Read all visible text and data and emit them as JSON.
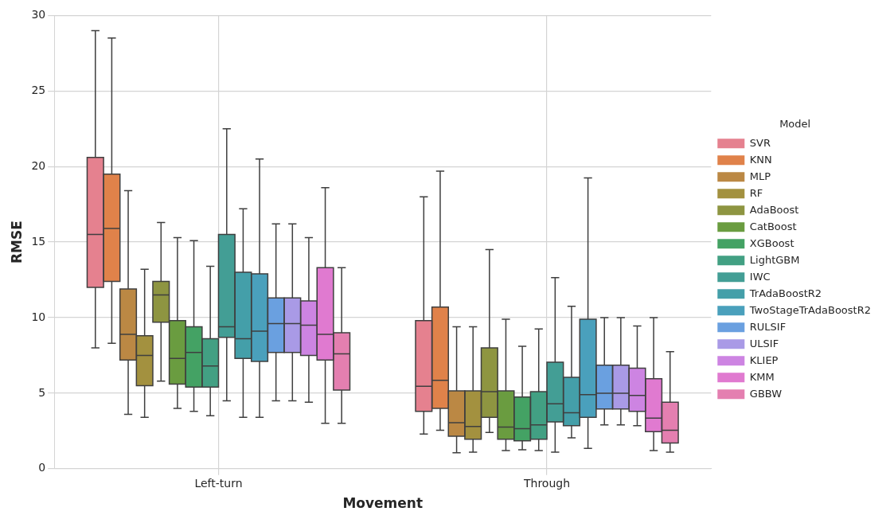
{
  "chart_data": {
    "type": "box",
    "xlabel": "Movement",
    "ylabel": "RMSE",
    "legend_title": "Model",
    "legend": "right",
    "categories": [
      "Left-turn",
      "Through"
    ],
    "ylim": [
      0,
      30
    ],
    "yticks": [
      0,
      5,
      10,
      15,
      20,
      25,
      30
    ],
    "grid": true,
    "series": [
      {
        "name": "SVR",
        "color": "#e5818f",
        "boxes": [
          {
            "low": 8.0,
            "q1": 12.0,
            "median": 15.5,
            "q3": 20.6,
            "high": 29.0
          },
          {
            "low": 2.3,
            "q1": 3.8,
            "median": 5.45,
            "q3": 9.8,
            "high": 18.0
          }
        ]
      },
      {
        "name": "KNN",
        "color": "#e0824a",
        "boxes": [
          {
            "low": 8.3,
            "q1": 12.4,
            "median": 15.9,
            "q3": 19.5,
            "high": 28.5
          },
          {
            "low": 2.55,
            "q1": 4.0,
            "median": 5.85,
            "q3": 10.7,
            "high": 19.7
          }
        ]
      },
      {
        "name": "MLP",
        "color": "#bb8844",
        "boxes": [
          {
            "low": 3.6,
            "q1": 7.2,
            "median": 8.9,
            "q3": 11.9,
            "high": 18.4
          },
          {
            "low": 1.05,
            "q1": 2.15,
            "median": 3.05,
            "q3": 5.15,
            "high": 9.4
          }
        ]
      },
      {
        "name": "RF",
        "color": "#a3913f",
        "boxes": [
          {
            "low": 3.4,
            "q1": 5.5,
            "median": 7.5,
            "q3": 8.8,
            "high": 13.2
          },
          {
            "low": 1.1,
            "q1": 1.95,
            "median": 2.8,
            "q3": 5.15,
            "high": 9.4
          }
        ]
      },
      {
        "name": "AdaBoost",
        "color": "#8e9541",
        "boxes": [
          {
            "low": 5.8,
            "q1": 9.7,
            "median": 11.5,
            "q3": 12.4,
            "high": 16.3
          },
          {
            "low": 2.4,
            "q1": 3.4,
            "median": 5.1,
            "q3": 8.0,
            "high": 14.5
          }
        ]
      },
      {
        "name": "CatBoost",
        "color": "#6a9c40",
        "boxes": [
          {
            "low": 4.0,
            "q1": 5.6,
            "median": 7.3,
            "q3": 9.8,
            "high": 15.3
          },
          {
            "low": 1.2,
            "q1": 1.95,
            "median": 2.75,
            "q3": 5.15,
            "high": 9.9
          }
        ]
      },
      {
        "name": "XGBoost",
        "color": "#44a264",
        "boxes": [
          {
            "low": 3.8,
            "q1": 5.4,
            "median": 7.7,
            "q3": 9.4,
            "high": 15.1
          },
          {
            "low": 1.25,
            "q1": 1.85,
            "median": 2.65,
            "q3": 4.75,
            "high": 8.1
          }
        ]
      },
      {
        "name": "LightGBM",
        "color": "#42a083",
        "boxes": [
          {
            "low": 3.5,
            "q1": 5.4,
            "median": 6.8,
            "q3": 8.6,
            "high": 13.4
          },
          {
            "low": 1.2,
            "q1": 1.95,
            "median": 2.9,
            "q3": 5.1,
            "high": 9.25
          }
        ]
      },
      {
        "name": "IWC",
        "color": "#439e95",
        "boxes": [
          {
            "low": 4.5,
            "q1": 8.7,
            "median": 9.4,
            "q3": 15.5,
            "high": 22.5
          },
          {
            "low": 1.1,
            "q1": 3.1,
            "median": 4.3,
            "q3": 7.05,
            "high": 12.65
          }
        ]
      },
      {
        "name": "TrAdaBoostR2",
        "color": "#449fa9",
        "boxes": [
          {
            "low": 3.4,
            "q1": 7.3,
            "median": 8.6,
            "q3": 13.0,
            "high": 17.2
          },
          {
            "low": 2.05,
            "q1": 2.85,
            "median": 3.7,
            "q3": 6.05,
            "high": 10.75
          }
        ]
      },
      {
        "name": "TwoStageTrAdaBoostR2",
        "color": "#4aa0bc",
        "boxes": [
          {
            "low": 3.4,
            "q1": 7.1,
            "median": 9.1,
            "q3": 12.9,
            "high": 20.5
          },
          {
            "low": 1.35,
            "q1": 3.4,
            "median": 4.9,
            "q3": 9.9,
            "high": 19.25
          }
        ]
      },
      {
        "name": "RULSIF",
        "color": "#6aa0e0",
        "boxes": [
          {
            "low": 4.5,
            "q1": 7.7,
            "median": 9.6,
            "q3": 11.3,
            "high": 16.2
          },
          {
            "low": 2.9,
            "q1": 3.95,
            "median": 5.0,
            "q3": 6.85,
            "high": 10.0
          }
        ]
      },
      {
        "name": "ULSIF",
        "color": "#a99ae6",
        "boxes": [
          {
            "low": 4.5,
            "q1": 7.7,
            "median": 9.6,
            "q3": 11.3,
            "high": 16.2
          },
          {
            "low": 2.9,
            "q1": 3.95,
            "median": 5.0,
            "q3": 6.85,
            "high": 10.0
          }
        ]
      },
      {
        "name": "KLIEP",
        "color": "#cd84e2",
        "boxes": [
          {
            "low": 4.4,
            "q1": 7.5,
            "median": 9.5,
            "q3": 11.1,
            "high": 15.3
          },
          {
            "low": 2.85,
            "q1": 3.8,
            "median": 4.85,
            "q3": 6.65,
            "high": 9.45
          }
        ]
      },
      {
        "name": "KMM",
        "color": "#e07ad0",
        "boxes": [
          {
            "low": 3.0,
            "q1": 7.2,
            "median": 8.9,
            "q3": 13.3,
            "high": 18.6
          },
          {
            "low": 1.2,
            "q1": 2.45,
            "median": 3.35,
            "q3": 5.95,
            "high": 10.0
          }
        ]
      },
      {
        "name": "GBBW",
        "color": "#e47fb0",
        "boxes": [
          {
            "low": 3.0,
            "q1": 5.2,
            "median": 7.6,
            "q3": 9.0,
            "high": 13.3
          },
          {
            "low": 1.1,
            "q1": 1.7,
            "median": 2.55,
            "q3": 4.4,
            "high": 7.75
          }
        ]
      }
    ]
  }
}
